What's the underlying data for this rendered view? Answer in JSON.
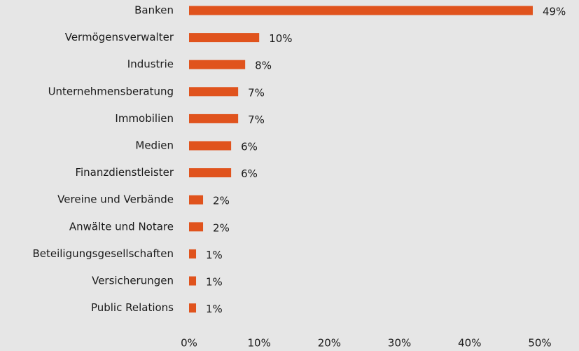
{
  "chart_data": {
    "type": "bar",
    "orientation": "horizontal",
    "categories": [
      "Banken",
      "Vermögensverwalter",
      "Industrie",
      "Unternehmensberatung",
      "Immobilien",
      "Medien",
      "Finanzdienstleister",
      "Vereine und Verbände",
      "Anwälte und Notare",
      "Beteiligungsgesellschaften",
      "Versicherungen",
      "Public Relations"
    ],
    "values": [
      49,
      10,
      8,
      7,
      7,
      6,
      6,
      2,
      2,
      1,
      1,
      1
    ],
    "value_labels": [
      "49%",
      "10%",
      "8%",
      "7%",
      "7%",
      "6%",
      "6%",
      "2%",
      "2%",
      "1%",
      "1%",
      "1%"
    ],
    "color": "#e0531d",
    "xlim": [
      0,
      50
    ],
    "xticks": [
      {
        "value": 0,
        "label": "0%"
      },
      {
        "value": 10,
        "label": "10%"
      },
      {
        "value": 20,
        "label": "20%"
      },
      {
        "value": 30,
        "label": "30%"
      },
      {
        "value": 40,
        "label": "40%"
      },
      {
        "value": 50,
        "label": "50%"
      }
    ],
    "grid": false
  }
}
